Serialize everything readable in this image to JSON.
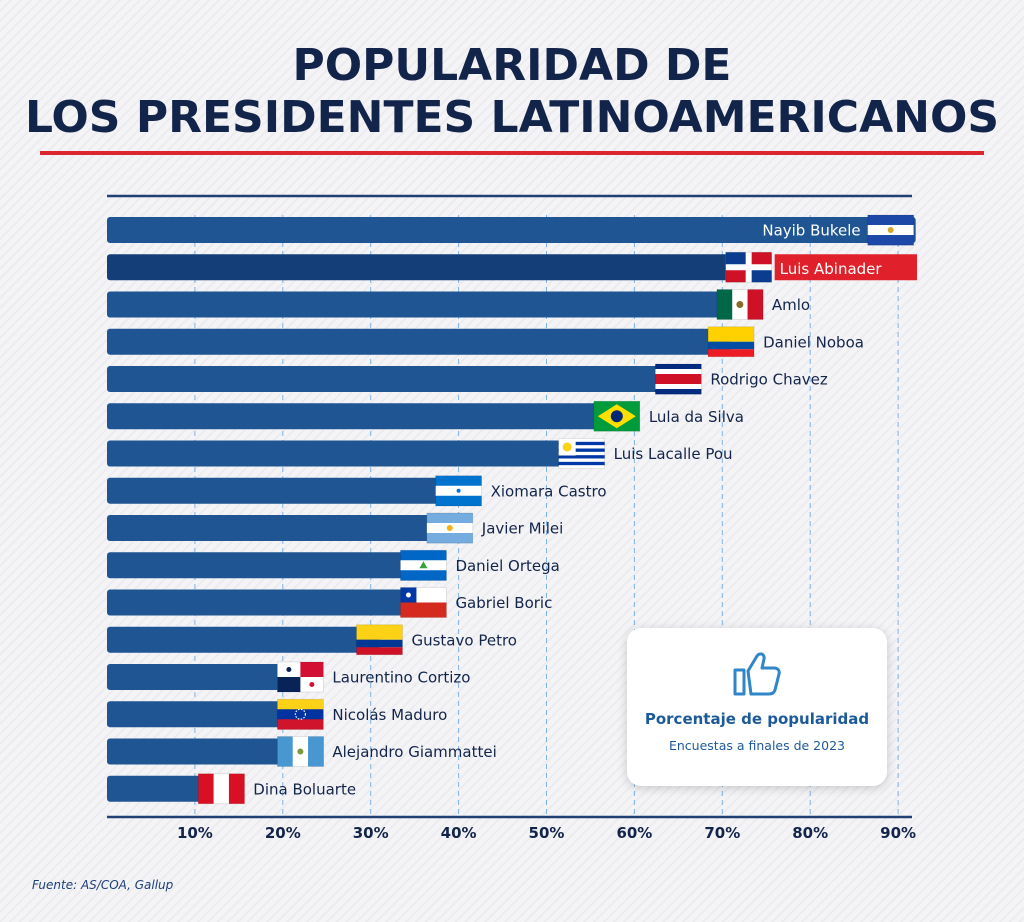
{
  "title": {
    "line1": "POPULARIDAD DE",
    "line2": "LOS PRESIDENTES LATINOAMERICANOS"
  },
  "legend": {
    "title": "Porcentaje de popularidad",
    "subtitle": "Encuestas a finales de 2023",
    "icon": "thumbs-up-icon"
  },
  "source": "Fuente: AS/COA, Gallup",
  "colors": {
    "bar": "#1f5592",
    "bar_highlight": "#143e78",
    "highlight_label_bg": "#e0202a",
    "title": "#13244a",
    "rule": "#d9262f"
  },
  "chart_data": {
    "type": "bar",
    "orientation": "horizontal",
    "title": "POPULARIDAD DE LOS PRESIDENTES LATINOAMERICANOS",
    "xlabel": "Porcentaje de popularidad",
    "ylabel": "",
    "xlim": [
      0,
      92
    ],
    "xticks": [
      10,
      20,
      30,
      40,
      50,
      60,
      70,
      80,
      90
    ],
    "xtick_labels": [
      "10%",
      "20%",
      "30%",
      "40%",
      "50%",
      "60%",
      "70%",
      "80%",
      "90%"
    ],
    "grid": "vertical dashed",
    "highlight": "Luis Abinader",
    "categories": [
      "Nayib Bukele",
      "Luis Abinader",
      "Amlo",
      "Daniel Noboa",
      "Rodrigo Chavez",
      "Lula da Silva",
      "Luis Lacalle Pou",
      "Xiomara Castro",
      "Javier Milei",
      "Daniel Ortega",
      "Gabriel Boric",
      "Gustavo Petro",
      "Laurentino Cortizo",
      "Nicolás Maduro",
      "Alejandro Giammattei",
      "Dina Boluarte"
    ],
    "values": [
      92,
      73,
      72,
      71,
      65,
      58,
      54,
      40,
      39,
      36,
      36,
      31,
      22,
      22,
      22,
      13
    ],
    "flags": [
      "el-salvador",
      "dominican-republic",
      "mexico",
      "ecuador",
      "costa-rica",
      "brazil",
      "uruguay",
      "honduras",
      "argentina",
      "nicaragua",
      "chile",
      "colombia",
      "panama",
      "venezuela",
      "guatemala",
      "peru"
    ]
  }
}
